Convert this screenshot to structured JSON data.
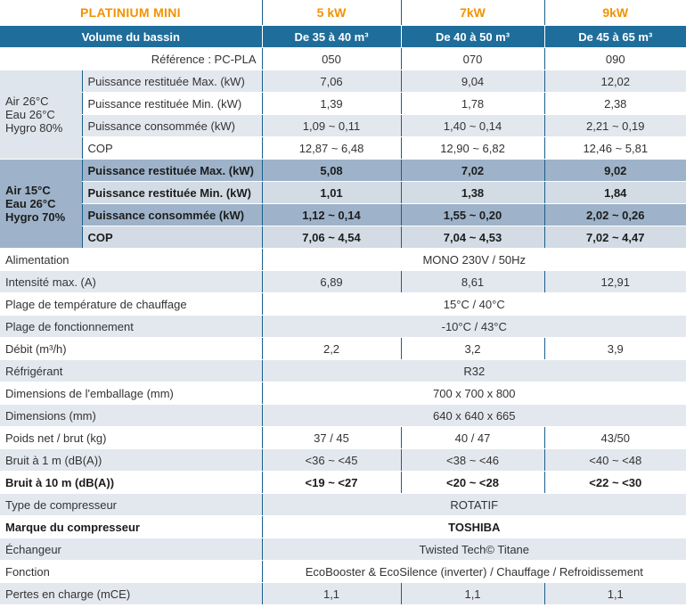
{
  "header": {
    "product": "PLATINIUM MINI",
    "models": [
      "5 kW",
      "7kW",
      "9kW"
    ]
  },
  "volume": {
    "label": "Volume du bassin",
    "values": [
      "De 35 à 40 m³",
      "De 40 à 50 m³",
      "De 45 à 65 m³"
    ]
  },
  "reference": {
    "label": "Référence : PC-PLA",
    "values": [
      "050",
      "070",
      "090"
    ]
  },
  "group1": {
    "conditions": [
      "Air 26°C",
      "Eau 26°C",
      "Hygro 80%"
    ],
    "rows": [
      {
        "label": "Puissance restituée Max. (kW)",
        "values": [
          "7,06",
          "9,04",
          "12,02"
        ]
      },
      {
        "label": "Puissance restituée Min. (kW)",
        "values": [
          "1,39",
          "1,78",
          "2,38"
        ]
      },
      {
        "label": "Puissance consommée (kW)",
        "values": [
          "1,09 ~ 0,11",
          "1,40 ~ 0,14",
          "2,21 ~ 0,19"
        ]
      },
      {
        "label": "COP",
        "values": [
          "12,87 ~ 6,48",
          "12,90 ~ 6,82",
          "12,46 ~ 5,81"
        ]
      }
    ]
  },
  "group2": {
    "conditions": [
      "Air 15°C",
      "Eau 26°C",
      "Hygro 70%"
    ],
    "rows": [
      {
        "label": "Puissance restituée Max. (kW)",
        "values": [
          "5,08",
          "7,02",
          "9,02"
        ]
      },
      {
        "label": "Puissance restituée Min. (kW)",
        "values": [
          "1,01",
          "1,38",
          "1,84"
        ]
      },
      {
        "label": "Puissance consommée (kW)",
        "values": [
          "1,12 ~ 0,14",
          "1,55 ~ 0,20",
          "2,02 ~ 0,26"
        ]
      },
      {
        "label": "COP",
        "values": [
          "7,06 ~ 4,54",
          "7,04 ~ 4,53",
          "7,02 ~ 4,47"
        ]
      }
    ]
  },
  "specs": {
    "alimentation": {
      "label": "Alimentation",
      "value": "MONO 230V / 50Hz"
    },
    "intensite": {
      "label": "Intensité max. (A)",
      "values": [
        "6,89",
        "8,61",
        "12,91"
      ]
    },
    "plage_temp": {
      "label": "Plage de température de chauffage",
      "value": "15°C / 40°C"
    },
    "plage_fonct": {
      "label": "Plage de fonctionnement",
      "value": "-10°C / 43°C"
    },
    "debit": {
      "label": "Débit (m³/h)",
      "values": [
        "2,2",
        "3,2",
        "3,9"
      ]
    },
    "refrigerant": {
      "label": "Réfrigérant",
      "value": "R32"
    },
    "dim_emballage": {
      "label": "Dimensions de l'emballage (mm)",
      "value": "700 x 700 x 800"
    },
    "dimensions": {
      "label": "Dimensions (mm)",
      "value": "640 x 640 x 665"
    },
    "poids": {
      "label": "Poids net / brut (kg)",
      "values": [
        "37 / 45",
        "40 / 47",
        "43/50"
      ]
    },
    "bruit1": {
      "label": "Bruit à 1 m (dB(A))",
      "values": [
        "<36 ~ <45",
        "<38 ~ <46",
        "<40 ~ <48"
      ]
    },
    "bruit10": {
      "label": "Bruit à 10 m (dB(A))",
      "values": [
        "<19 ~ <27",
        "<20 ~ <28",
        "<22 ~ <30"
      ]
    },
    "type_comp": {
      "label": "Type de compresseur",
      "value": "ROTATIF"
    },
    "marque_comp": {
      "label": "Marque du compresseur",
      "value": "TOSHIBA"
    },
    "echangeur": {
      "label": "Échangeur",
      "value": "Twisted Tech© Titane"
    },
    "fonction": {
      "label": "Fonction",
      "value": "EcoBooster & EcoSilence (inverter) / Chauffage / Refroidissement"
    },
    "pertes": {
      "label": "Pertes en charge (mCE)",
      "values": [
        "1,1",
        "1,1",
        "1,1"
      ]
    }
  },
  "colors": {
    "accent": "#f39200",
    "header_blue": "#1f6d9a",
    "band_dark": "#9eb3c9",
    "band_light": "#e3e8ef"
  }
}
